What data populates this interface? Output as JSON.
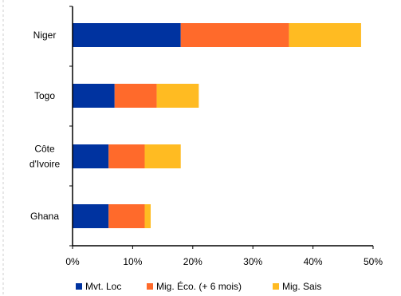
{
  "chart_data": {
    "type": "bar",
    "orientation": "horizontal",
    "stacked": true,
    "categories": [
      "Niger",
      "Togo",
      "Côte d'Ivoire",
      "Ghana"
    ],
    "category_lines": [
      [
        "Niger"
      ],
      [
        "Togo"
      ],
      [
        "Côte",
        "d'Ivoire"
      ],
      [
        "Ghana"
      ]
    ],
    "series": [
      {
        "name": "Mvt. Loc",
        "color": "#0033a0",
        "values": [
          18,
          7,
          6,
          6
        ]
      },
      {
        "name": "Mig. Éco. (+ 6 mois)",
        "color": "#ff6a2b",
        "values": [
          18,
          7,
          6,
          6
        ]
      },
      {
        "name": "Mig. Sais",
        "color": "#ffbb22",
        "values": [
          12,
          7,
          6,
          1
        ]
      }
    ],
    "x_ticks": [
      "0%",
      "10%",
      "20%",
      "30%",
      "40%",
      "50%"
    ],
    "xlim": [
      0,
      50
    ],
    "unit": "%",
    "title": "",
    "xlabel": "",
    "ylabel": "",
    "grid": false,
    "legend_position": "bottom"
  }
}
